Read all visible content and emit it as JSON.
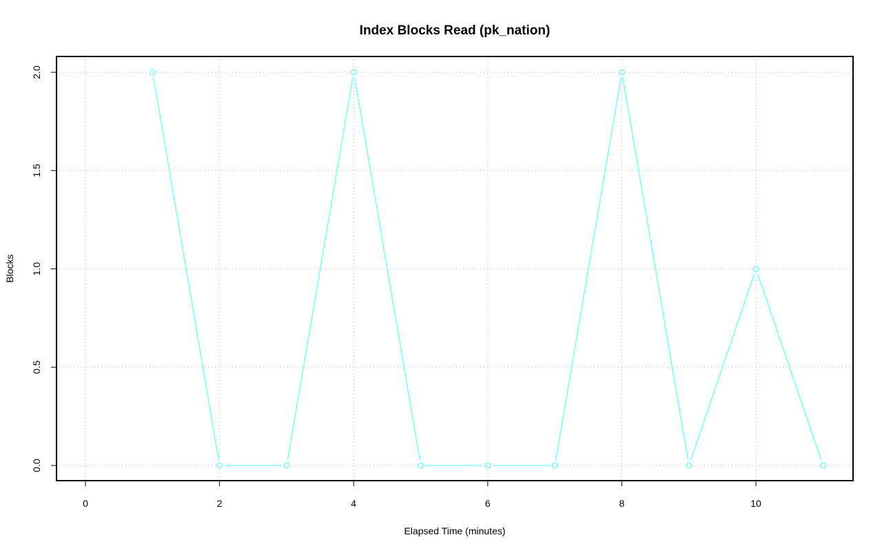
{
  "chart_data": {
    "type": "line",
    "title": "Index Blocks Read (pk_nation)",
    "xlabel": "Elapsed Time (minutes)",
    "ylabel": "Blocks",
    "xlim": [
      0,
      11
    ],
    "ylim": [
      0,
      2
    ],
    "x_ticks": [
      "0",
      "2",
      "4",
      "6",
      "8",
      "10"
    ],
    "y_ticks": [
      "0.0",
      "0.5",
      "1.0",
      "1.5",
      "2.0"
    ],
    "grid": true,
    "color": "#7FFFFF",
    "x": [
      1,
      2,
      3,
      4,
      5,
      6,
      7,
      8,
      9,
      10,
      11
    ],
    "y": [
      2,
      0,
      0,
      2,
      0,
      0,
      0,
      2,
      0,
      1,
      0
    ]
  }
}
